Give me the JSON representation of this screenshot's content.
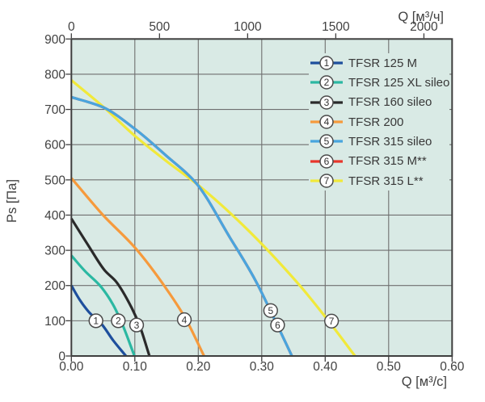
{
  "chart_data": {
    "type": "line",
    "plot_bg": "#d9eae5",
    "grid_color": "#6f6f6f",
    "frame_color": "#3f3f3f",
    "text_color": "#414141",
    "x_bottom": {
      "label": "Q [м³/c]",
      "min": 0,
      "max": 0.6,
      "tick_values": [
        0,
        0.1,
        0.2,
        0.3,
        0.4,
        0.5,
        0.6
      ],
      "tick_labels": [
        "0.00",
        "0.10",
        "0.20",
        "0.30",
        "0.40",
        "0.50",
        "0.60"
      ]
    },
    "x_top": {
      "label": "Q [м³/ч]",
      "unit_factor": 3600,
      "tick_values": [
        0,
        500,
        1000,
        1500,
        2000
      ],
      "tick_labels": [
        "0",
        "500",
        "1000",
        "1500",
        "2000"
      ]
    },
    "y": {
      "label": "Ps [Па]",
      "min": 0,
      "max": 900,
      "tick_values": [
        0,
        100,
        200,
        300,
        400,
        500,
        600,
        700,
        800,
        900
      ],
      "tick_labels": [
        "0",
        "100",
        "200",
        "300",
        "400",
        "500",
        "600",
        "700",
        "800",
        "900"
      ]
    },
    "series": [
      {
        "num": "1",
        "name": "TFSR 125 M",
        "color": "#1e4f9d",
        "points": [
          [
            0,
            200
          ],
          [
            0.013,
            160
          ],
          [
            0.028,
            124
          ],
          [
            0.047,
            92
          ],
          [
            0.066,
            44
          ],
          [
            0.086,
            0
          ]
        ],
        "marker": {
          "q": 0.0387,
          "ps": 100
        }
      },
      {
        "num": "2",
        "name": "TFSR 125 XL sileo",
        "color": "#2bb8a2",
        "points": [
          [
            0,
            285
          ],
          [
            0.022,
            240
          ],
          [
            0.045,
            200
          ],
          [
            0.065,
            148
          ],
          [
            0.078,
            100
          ],
          [
            0.0995,
            0
          ]
        ],
        "marker": {
          "q": 0.0739,
          "ps": 100
        }
      },
      {
        "num": "3",
        "name": "TFSR 160 sileo",
        "color": "#2a2a2a",
        "points": [
          [
            0,
            390
          ],
          [
            0.028,
            310
          ],
          [
            0.053,
            242
          ],
          [
            0.07,
            212
          ],
          [
            0.0955,
            135
          ],
          [
            0.108,
            84
          ],
          [
            0.123,
            0
          ]
        ],
        "marker": {
          "q": 0.1028,
          "ps": 88
        }
      },
      {
        "num": "4",
        "name": "TFSR 200",
        "color": "#f69a3c",
        "points": [
          [
            0,
            505
          ],
          [
            0.05,
            400
          ],
          [
            0.1,
            308
          ],
          [
            0.15,
            190
          ],
          [
            0.18,
            106
          ],
          [
            0.209,
            0
          ]
        ],
        "marker": {
          "q": 0.178,
          "ps": 103
        }
      },
      {
        "num": "5",
        "name": "TFSR 315 sileo",
        "color": "#49a5de",
        "points": [
          [
            0,
            735
          ],
          [
            0.05,
            706
          ],
          [
            0.1,
            645
          ],
          [
            0.15,
            568
          ],
          [
            0.196,
            492
          ],
          [
            0.25,
            336
          ],
          [
            0.29,
            215
          ],
          [
            0.32,
            105
          ],
          [
            0.3475,
            0
          ]
        ],
        "marker": {
          "q": 0.314,
          "ps": 129
        }
      },
      {
        "num": "6",
        "name": "TFSR 315 M**",
        "color": "#e8362b",
        "points": [
          [
            0,
            735
          ],
          [
            0.05,
            706
          ],
          [
            0.1,
            645
          ],
          [
            0.15,
            568
          ],
          [
            0.196,
            492
          ],
          [
            0.25,
            336
          ],
          [
            0.29,
            215
          ],
          [
            0.32,
            105
          ],
          [
            0.3475,
            0
          ]
        ],
        "marker": {
          "q": 0.325,
          "ps": 88
        }
      },
      {
        "num": "7",
        "name": "TFSR 315 L**",
        "color": "#f1e93a",
        "points": [
          [
            0,
            783
          ],
          [
            0.05,
            708
          ],
          [
            0.1,
            625
          ],
          [
            0.15,
            553
          ],
          [
            0.2,
            485
          ],
          [
            0.27,
            372
          ],
          [
            0.36,
            200
          ],
          [
            0.405,
            100
          ],
          [
            0.447,
            0
          ]
        ],
        "marker": {
          "q": 0.41,
          "ps": 99
        }
      }
    ]
  }
}
